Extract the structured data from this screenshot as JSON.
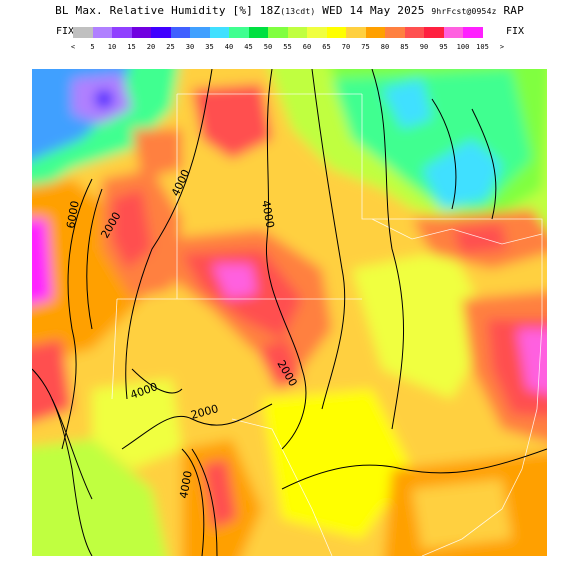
{
  "header": {
    "title_main": "BL Max. Relative Humidity",
    "title_unit": "[%]",
    "title_time": "18Z",
    "title_local": "(13cdt)",
    "title_date": "WED 14 May 2025",
    "title_fcst": "9hrFcst@0954z",
    "title_model": "RAP"
  },
  "legend": {
    "fix_left": "FIX",
    "fix_right": "FIX",
    "low_arrow": "<",
    "high_arrow": ">",
    "ticks": [
      "5",
      "10",
      "15",
      "20",
      "25",
      "30",
      "35",
      "40",
      "45",
      "50",
      "55",
      "60",
      "65",
      "70",
      "75",
      "80",
      "85",
      "90",
      "95",
      "100",
      "105"
    ],
    "colors": [
      "#c0c0c0",
      "#b080ff",
      "#9040ff",
      "#7000e0",
      "#4000ff",
      "#4060ff",
      "#40a0ff",
      "#40e0ff",
      "#40ff90",
      "#00e040",
      "#80ff40",
      "#c0ff40",
      "#f0ff40",
      "#ffff00",
      "#ffd040",
      "#ffa000",
      "#ff8040",
      "#ff5050",
      "#ff2040",
      "#ff60e0",
      "#ff20ff"
    ]
  },
  "map": {
    "contour_labels": [
      "4000",
      "6000",
      "2000",
      "4000",
      "2000",
      "4000",
      "2000",
      "4000"
    ]
  }
}
